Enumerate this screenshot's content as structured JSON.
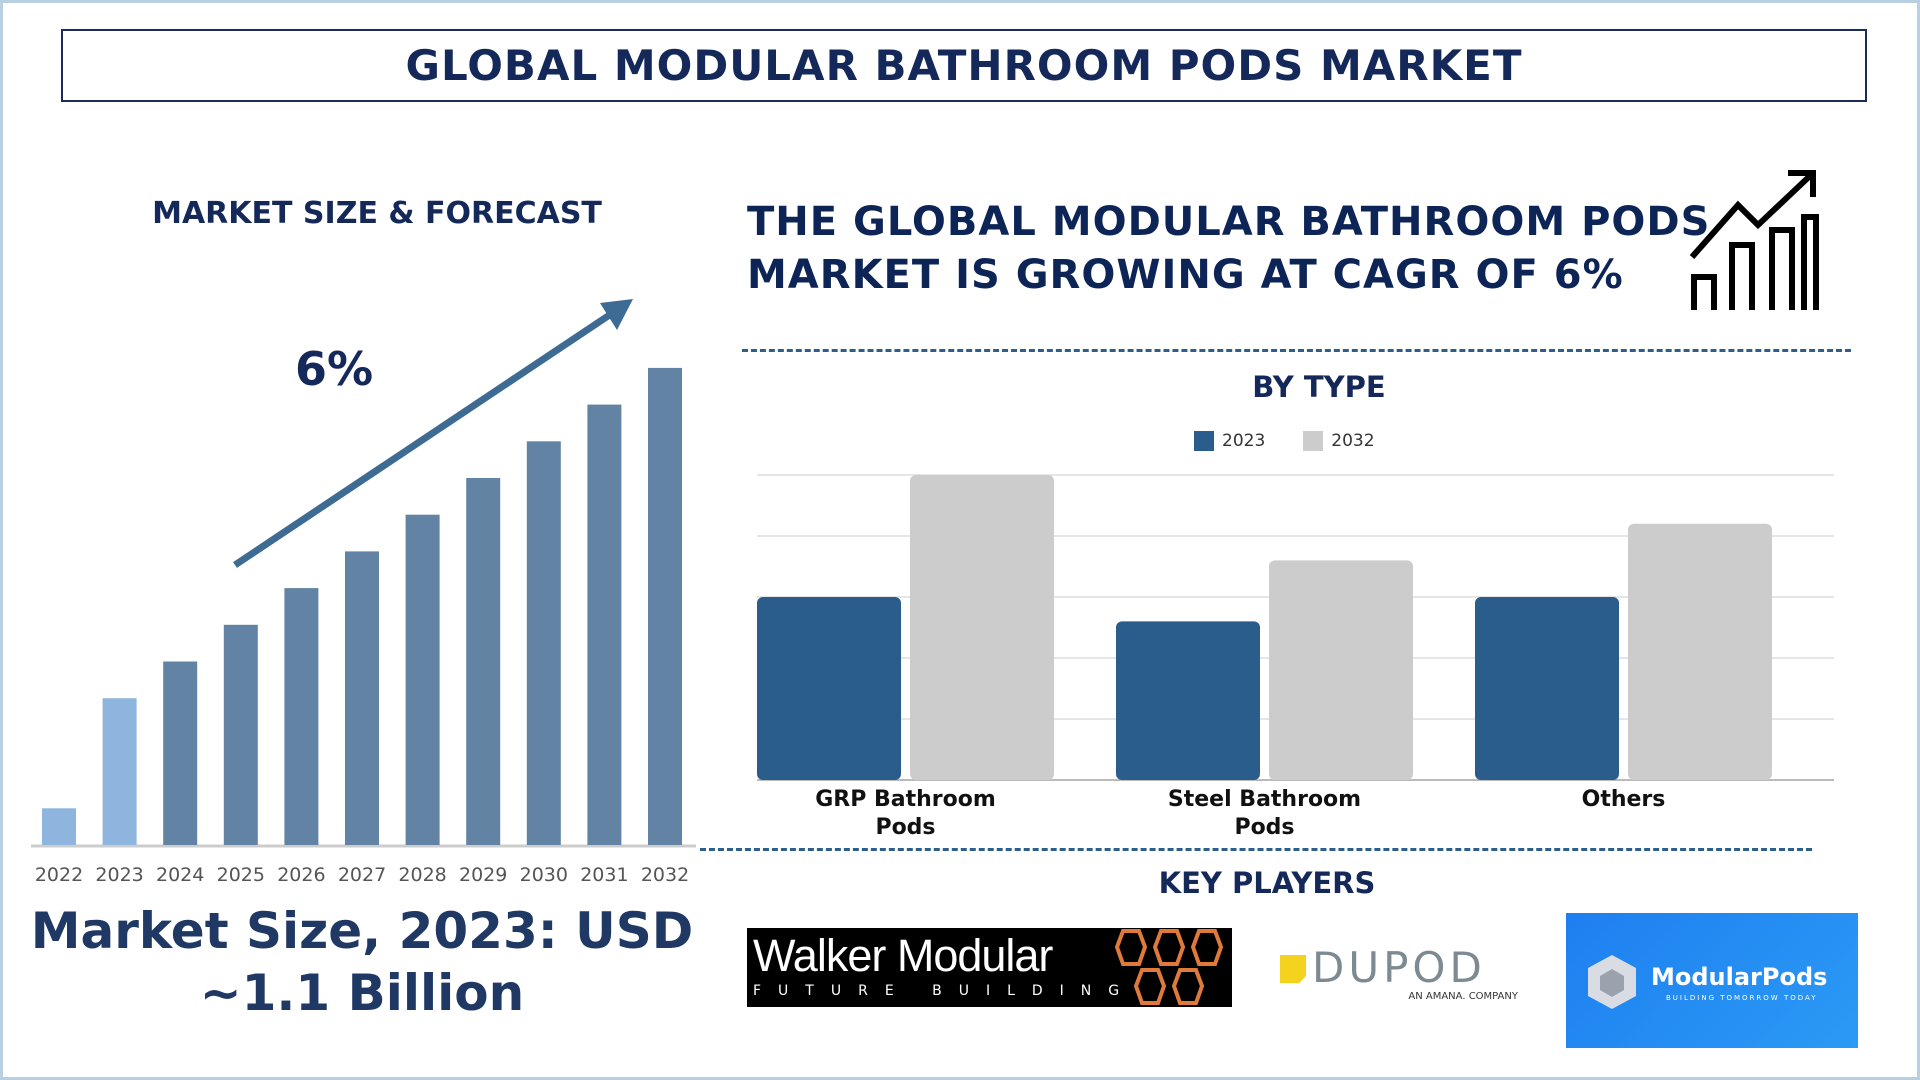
{
  "title": "GLOBAL MODULAR BATHROOM PODS MARKET",
  "left_panel": {
    "heading": "MARKET SIZE & FORECAST",
    "cagr_label": "6%",
    "market_size_line1": "Market Size, 2023: USD",
    "market_size_line2": "~1.1 Billion"
  },
  "headline": {
    "line1": "THE GLOBAL MODULAR BATHROOM PODS",
    "line2": "MARKET IS GROWING AT CAGR OF 6%",
    "icon": "growth-chart-arrow-icon"
  },
  "by_type_heading": "BY TYPE",
  "key_players": {
    "heading": "KEY PLAYERS",
    "logos": [
      {
        "name": "Walker Modular",
        "tagline": "FUTURE BUILDING"
      },
      {
        "name": "DUPOD",
        "tagline": "AN AMANA. COMPANY"
      },
      {
        "name": "ModularPods",
        "tagline": "BUILDING TOMORROW TODAY"
      }
    ]
  },
  "chart_data": [
    {
      "type": "bar",
      "title": "MARKET SIZE & FORECAST",
      "categories": [
        "2022",
        "2023",
        "2024",
        "2025",
        "2026",
        "2027",
        "2028",
        "2029",
        "2030",
        "2031",
        "2032"
      ],
      "values": [
        1,
        4,
        5,
        6,
        7,
        8,
        9,
        10,
        11,
        12,
        13
      ],
      "colors": {
        "historic": "#8db5de",
        "forecast": "#6283a3",
        "arrow": "#3d6b93"
      },
      "highlighted": [
        "2022",
        "2023"
      ],
      "annotation": "6%",
      "grid": false
    },
    {
      "type": "bar",
      "title": "BY TYPE",
      "categories": [
        [
          "GRP Bathroom",
          "Pods"
        ],
        [
          "Steel Bathroom",
          "Pods"
        ],
        [
          "Others"
        ]
      ],
      "series": [
        {
          "name": "2023",
          "values": [
            3,
            2.6,
            3
          ],
          "color": "#2a5d8c"
        },
        {
          "name": "2032",
          "values": [
            5,
            3.6,
            4.2
          ],
          "color": "#cccccc"
        }
      ],
      "ylim": [
        0,
        5
      ],
      "grid": true,
      "legend": "top-center"
    }
  ]
}
